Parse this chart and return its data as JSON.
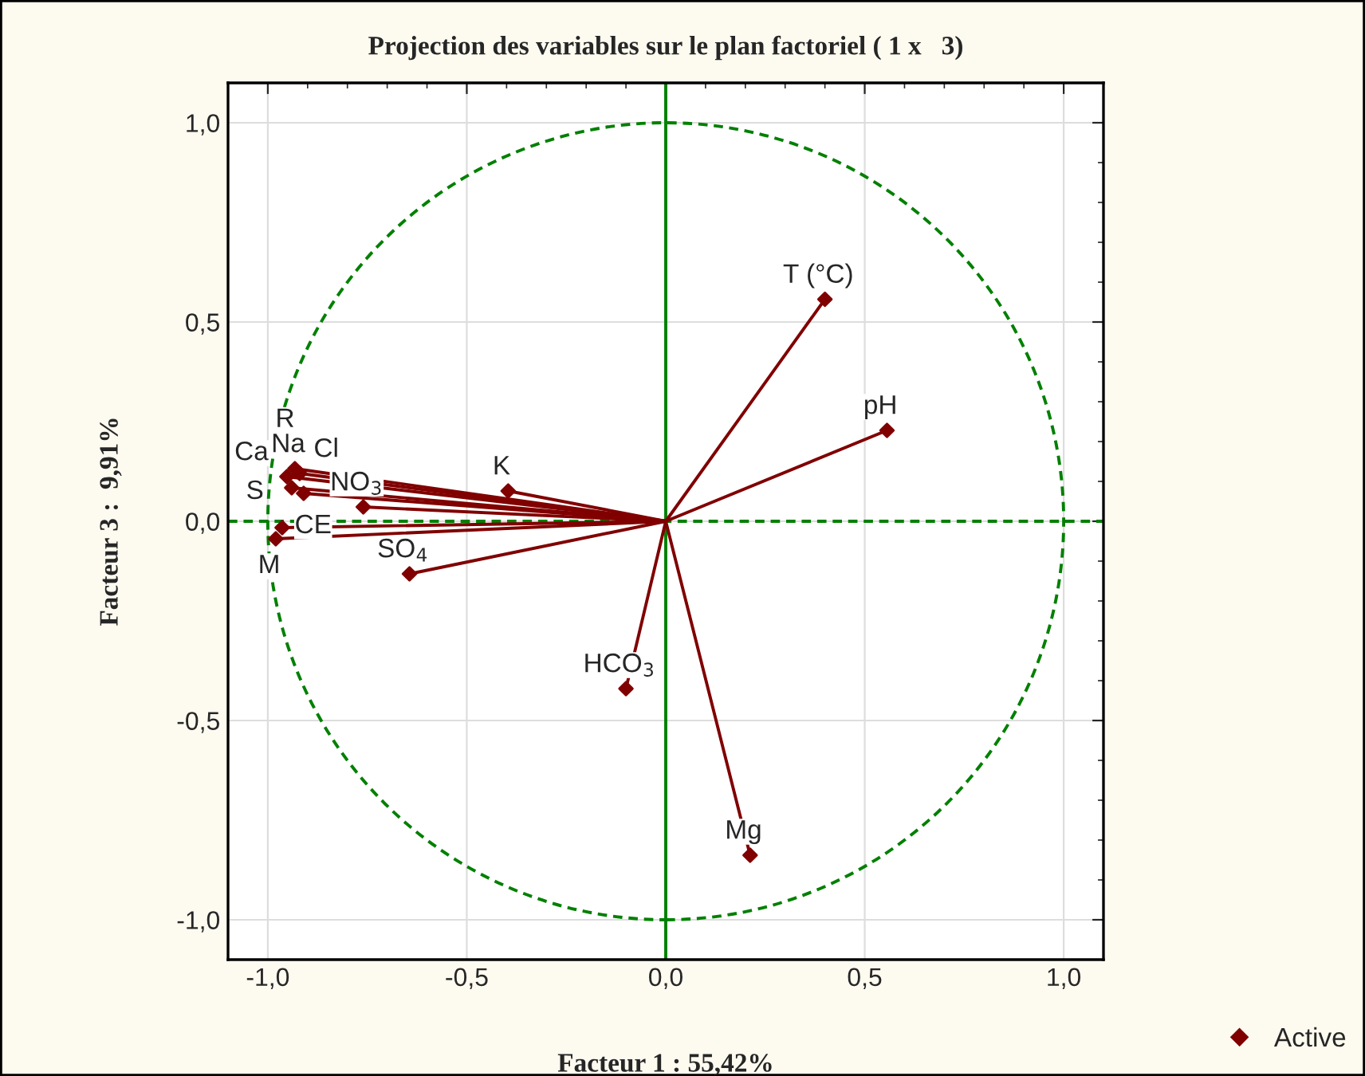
{
  "chart_data": {
    "type": "scatter",
    "title": "Projection des variables sur le plan factoriel ( 1 x   3)",
    "xlabel": "Facteur 1 : 55,42%",
    "ylabel": "Facteur 3 :  9,91%",
    "xlim": [
      -1.1,
      1.1
    ],
    "ylim": [
      -1.1,
      1.1
    ],
    "xticks": [
      {
        "value": -1,
        "label": "-1,0"
      },
      {
        "value": -0.5,
        "label": "-0,5"
      },
      {
        "value": 0,
        "label": "0,0"
      },
      {
        "value": 0.5,
        "label": "0,5"
      },
      {
        "value": 1,
        "label": "1,0"
      }
    ],
    "yticks": [
      {
        "value": -1,
        "label": "-1,0"
      },
      {
        "value": -0.5,
        "label": "-0,5"
      },
      {
        "value": 0,
        "label": "0,0"
      },
      {
        "value": 0.5,
        "label": "0,5"
      },
      {
        "value": 1,
        "label": "1,0"
      }
    ],
    "grid": true,
    "legend": "bottom right",
    "marker": "diamond",
    "ref_lines": [
      {
        "axis": "y",
        "value": 0,
        "color": "#008000",
        "line_style": "dashed"
      },
      {
        "axis": "x",
        "value": 0,
        "color": "#008000",
        "line_style": "solid"
      }
    ],
    "series": [
      {
        "name": "Active",
        "color": "#800000",
        "x": [
          0.4,
          0.556,
          -0.396,
          -0.76,
          -0.644,
          -0.1,
          0.212,
          -0.932,
          -0.952,
          -0.92,
          -0.94,
          -0.91,
          -0.964,
          -0.98
        ],
        "values": [
          0.557,
          0.228,
          0.076,
          0.036,
          -0.132,
          -0.42,
          -0.838,
          0.132,
          0.112,
          0.12,
          0.084,
          0.07,
          -0.016,
          -0.044
        ]
      }
    ],
    "annotations": [
      {
        "text": "T (°C)",
        "x": 0.4,
        "y": 0.557
      },
      {
        "text": "pH",
        "x": 0.556,
        "y": 0.228
      },
      {
        "text": "K",
        "x": -0.396,
        "y": 0.076
      },
      {
        "text": "NO$_{3}$",
        "x": -0.76,
        "y": 0.036
      },
      {
        "text": "SO$_{4}$",
        "x": -0.644,
        "y": -0.132
      },
      {
        "text": "HCO$_{3}$",
        "x": -0.1,
        "y": -0.42
      },
      {
        "text": "Mg",
        "x": 0.212,
        "y": -0.838
      },
      {
        "text": "Na",
        "x": -0.932,
        "y": 0.132
      },
      {
        "text": "Ca",
        "x": -0.952,
        "y": 0.112
      },
      {
        "text": "Cl",
        "x": -0.92,
        "y": 0.12
      },
      {
        "text": "R",
        "x": -0.94,
        "y": 0.084
      },
      {
        "text": "S",
        "x": -0.91,
        "y": 0.07
      },
      {
        "text": "CE",
        "x": -0.964,
        "y": -0.016
      },
      {
        "text": "M",
        "x": -0.98,
        "y": -0.044
      }
    ]
  }
}
